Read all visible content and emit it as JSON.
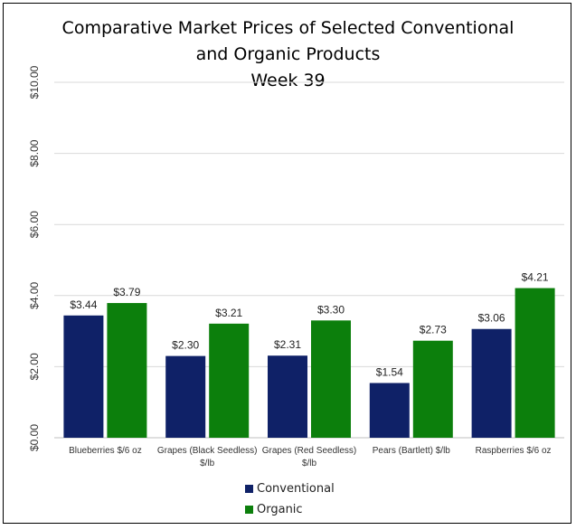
{
  "chart_data": {
    "type": "bar",
    "title_lines": [
      "Comparative Market Prices of Selected Conventional",
      "and Organic Products",
      "Week 39"
    ],
    "categories": [
      [
        "Blueberries $/6 oz"
      ],
      [
        "Grapes (Black Seedless)",
        "$/lb"
      ],
      [
        "Grapes (Red Seedless)",
        "$/lb"
      ],
      [
        "Pears (Bartlett) $/lb"
      ],
      [
        "Raspberries $/6 oz"
      ]
    ],
    "series": [
      {
        "name": "Conventional",
        "color": "#0f2167",
        "values": [
          3.44,
          2.3,
          2.31,
          1.54,
          3.06
        ],
        "labels": [
          "$3.44",
          "$2.30",
          "$2.31",
          "$1.54",
          "$3.06"
        ]
      },
      {
        "name": "Organic",
        "color": "#0c7f0c",
        "values": [
          3.79,
          3.21,
          3.3,
          2.73,
          4.21
        ],
        "labels": [
          "$3.79",
          "$3.21",
          "$3.30",
          "$2.73",
          "$4.21"
        ]
      }
    ],
    "y_ticks": [
      0,
      2,
      4,
      6,
      8,
      10
    ],
    "y_tick_labels": [
      "$0.00",
      "$2.00",
      "$4.00",
      "$6.00",
      "$8.00",
      "$10.00"
    ],
    "ylim": [
      0,
      10
    ],
    "xlabel": "",
    "ylabel": "",
    "grid": true,
    "legend_position": "bottom"
  }
}
